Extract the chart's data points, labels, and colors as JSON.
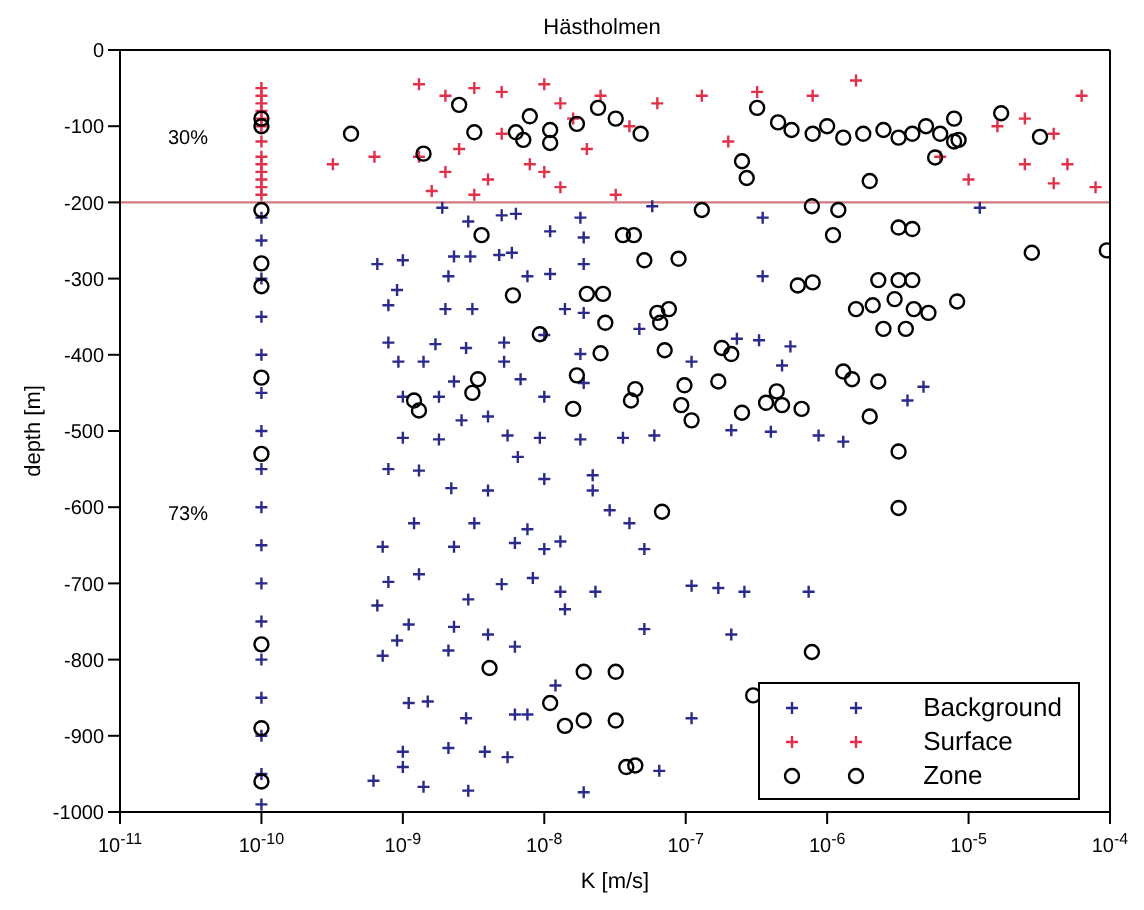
{
  "chart_data": {
    "type": "scatter",
    "title": "Hästholmen",
    "xlabel": "K [m/s]",
    "ylabel": "depth [m]",
    "log": "x",
    "xlim": [
      1e-11,
      0.0001
    ],
    "xticks": [
      {
        "value": 1e-11,
        "label": "10$^{-11}$"
      },
      {
        "value": 1e-10,
        "label": "10$^{-10}$"
      },
      {
        "value": 1e-09,
        "label": "10$^{-9}$"
      },
      {
        "value": 1e-08,
        "label": "10$^{-8}$"
      },
      {
        "value": 1e-07,
        "label": "10$^{-7}$"
      },
      {
        "value": 1e-06,
        "label": "10$^{-6}$"
      },
      {
        "value": 1e-05,
        "label": "10$^{-5}$"
      },
      {
        "value": 0.0001,
        "label": "10$^{-4}$"
      }
    ],
    "ylim": [
      -1000,
      0
    ],
    "yticks": [
      -1000,
      -900,
      -800,
      -700,
      -600,
      -500,
      -400,
      -300,
      -200,
      -100,
      0
    ],
    "legend": "bottom right",
    "ref_lines": [
      {
        "axis": "y",
        "value": -200,
        "color": "#d07a80"
      }
    ],
    "annotations": [
      "30%",
      "73%"
    ],
    "series": [
      {
        "name": "Background",
        "color": "#2a2a8a",
        "marker": "cross",
        "x": [
          1e-10,
          1e-10,
          1e-10,
          1e-10,
          1e-10,
          1e-10,
          1e-10,
          1e-10,
          1e-10,
          1e-10,
          1e-10,
          1e-10,
          1e-10,
          1e-10,
          1e-10,
          1e-10,
          1e-10,
          1.9e-09,
          2.9e-09,
          5e-09,
          6.3e-09,
          1.1e-08,
          1.8e-08,
          1.9e-08,
          5.8e-08,
          3.5e-07,
          1.2e-05,
          6.6e-10,
          1e-09,
          2.3e-09,
          3e-09,
          4.8e-09,
          5.9e-09,
          1.9e-08,
          2.1e-09,
          7.6e-09,
          1.1e-08,
          3.5e-07,
          9.1e-10,
          7.9e-10,
          2e-09,
          3.1e-09,
          1.4e-08,
          1.9e-08,
          4.7e-08,
          7.9e-10,
          1.7e-09,
          2.8e-09,
          5.2e-09,
          1e-08,
          1.8e-08,
          2.3e-07,
          3.3e-07,
          5.5e-07,
          1.1e-07,
          4.8e-07,
          9.3e-10,
          1.4e-09,
          5.2e-09,
          6.8e-09,
          1e-08,
          1e-09,
          1.8e-09,
          2.3e-09,
          1.9e-08,
          4.8e-06,
          3.7e-06,
          1e-09,
          1.8e-09,
          2.6e-09,
          4e-09,
          5.5e-09,
          9.3e-09,
          1.8e-08,
          3.6e-08,
          6e-08,
          2.1e-07,
          4e-07,
          8.7e-07,
          1.3e-06,
          6.5e-09,
          7.9e-10,
          1.3e-09,
          2.2e-09,
          4e-09,
          1e-08,
          2.2e-08,
          2.2e-08,
          1.2e-09,
          3.2e-09,
          7.6e-09,
          2.9e-08,
          4e-08,
          7.2e-10,
          2.3e-09,
          6.2e-09,
          1e-08,
          1.3e-08,
          5.1e-08,
          7.9e-10,
          1.3e-09,
          6.6e-10,
          2.9e-09,
          5e-09,
          8.3e-09,
          1.3e-08,
          2.3e-08,
          1.4e-08,
          1.1e-07,
          1.7e-07,
          2.6e-07,
          7.4e-07,
          1.1e-09,
          2.3e-09,
          4e-09,
          5.1e-08,
          2.1e-07,
          7.2e-10,
          9.1e-10,
          2.1e-09,
          6.2e-09,
          1.1e-09,
          1.5e-09,
          2.8e-09,
          6.2e-09,
          7.6e-09,
          1.2e-08,
          1.1e-07,
          6.2e-10,
          1e-09,
          1e-09,
          2.1e-09,
          3.8e-09,
          5.5e-09,
          1.4e-09,
          2.9e-09,
          6.5e-08,
          1.9e-08
        ],
        "values": [
          -220,
          -250,
          -300,
          -350,
          -400,
          -450,
          -500,
          -550,
          -600,
          -650,
          -700,
          -750,
          -800,
          -850,
          -900,
          -950,
          -990,
          -207,
          -225,
          -217,
          -215,
          -238,
          -220,
          -246,
          -205,
          -220,
          -207,
          -281,
          -276,
          -271,
          -271,
          -269,
          -266,
          -281,
          -297,
          -297,
          -294,
          -297,
          -315,
          -335,
          -340,
          -340,
          -340,
          -345,
          -366,
          -384,
          -386,
          -391,
          -384,
          -374,
          -399,
          -379,
          -381,
          -389,
          -409,
          -414,
          -409,
          -409,
          -409,
          -432,
          -455,
          -455,
          -455,
          -435,
          -437,
          -442,
          -460,
          -509,
          -511,
          -486,
          -481,
          -506,
          -509,
          -511,
          -509,
          -506,
          -499,
          -501,
          -506,
          -514,
          -534,
          -550,
          -552,
          -575,
          -578,
          -563,
          -558,
          -578,
          -621,
          -621,
          -629,
          -604,
          -621,
          -652,
          -652,
          -647,
          -655,
          -645,
          -655,
          -698,
          -688,
          -729,
          -721,
          -701,
          -693,
          -711,
          -711,
          -734,
          -703,
          -706,
          -711,
          -711,
          -754,
          -757,
          -767,
          -760,
          -767,
          -795,
          -775,
          -788,
          -783,
          -857,
          -855,
          -877,
          -872,
          -872,
          -834,
          -877,
          -959,
          -921,
          -941,
          -916,
          -921,
          -928,
          -967,
          -972,
          -946,
          -974
        ]
      },
      {
        "name": "Surface",
        "color": "#e0304a",
        "marker": "cross",
        "x": [
          1e-10,
          1e-10,
          1e-10,
          1e-10,
          1e-10,
          1e-10,
          1e-10,
          1e-10,
          1e-10,
          1e-10,
          1e-10,
          1e-10,
          1e-10,
          1.3e-09,
          2e-09,
          3.2e-09,
          5e-09,
          1e-08,
          1.3e-08,
          1.6e-08,
          2.5e-08,
          4e-08,
          5e-09,
          2.5e-09,
          1.3e-09,
          6.3e-10,
          3.2e-10,
          2e-09,
          4e-09,
          7.9e-09,
          1.3e-08,
          1e-08,
          2e-08,
          3.2e-08,
          3.2e-09,
          1.6e-09,
          6.3e-08,
          1.3e-07,
          3.2e-07,
          7.9e-07,
          1.6e-06,
          2e-07,
          6.3e-06,
          1e-05,
          1.6e-05,
          2.5e-05,
          4e-05,
          6.3e-05,
          7.9e-05,
          5e-05,
          2.5e-05,
          4e-05
        ],
        "values": [
          -50,
          -60,
          -70,
          -80,
          -90,
          -100,
          -120,
          -140,
          -150,
          -160,
          -170,
          -180,
          -190,
          -45,
          -60,
          -50,
          -55,
          -45,
          -70,
          -90,
          -60,
          -100,
          -110,
          -130,
          -140,
          -140,
          -150,
          -160,
          -170,
          -150,
          -180,
          -160,
          -130,
          -190,
          -190,
          -185,
          -70,
          -60,
          -55,
          -60,
          -40,
          -120,
          -140,
          -170,
          -100,
          -150,
          -110,
          -60,
          -180,
          -150,
          -90,
          -175
        ]
      },
      {
        "name": "Zone",
        "color": "#000000",
        "marker": "circle",
        "x": [
          1e-10,
          1e-10,
          1e-10,
          1e-10,
          1e-10,
          1e-10,
          1e-10,
          1e-10,
          1e-10,
          1e-10,
          2.5e-09,
          4.3e-10,
          1.4e-09,
          3.2e-09,
          6.3e-09,
          7.1e-09,
          7.9e-09,
          1.1e-08,
          1.1e-08,
          1.7e-08,
          2.4e-08,
          3.2e-08,
          4.8e-08,
          1.3e-07,
          2.5e-07,
          2.7e-07,
          3.2e-07,
          4.5e-07,
          5.6e-07,
          7.9e-07,
          1e-06,
          1.3e-06,
          1.8e-06,
          2.5e-06,
          3.2e-06,
          4e-06,
          5e-06,
          6.3e-06,
          7.9e-06,
          2e-06,
          5.8e-06,
          7.9e-06,
          8.5e-06,
          1.7e-05,
          3.2e-05,
          7.8e-07,
          1.2e-06,
          1.1e-06,
          3.2e-06,
          4e-06,
          3.6e-09,
          3.6e-08,
          4.3e-08,
          5.1e-08,
          8.9e-08,
          2.8e-05,
          9.5e-05,
          6.2e-07,
          7.9e-07,
          6e-09,
          2e-08,
          2.6e-08,
          2.3e-06,
          3.2e-06,
          4e-06,
          8.3e-06,
          1.6e-06,
          2.1e-06,
          3e-06,
          4.1e-06,
          5.2e-06,
          2.5e-06,
          3.6e-06,
          2.7e-08,
          6.3e-08,
          7.6e-08,
          6.6e-08,
          9.3e-09,
          2.5e-08,
          7.1e-08,
          1.8e-07,
          2.1e-07,
          1.3e-06,
          1.5e-06,
          2.3e-06,
          3.4e-09,
          3.1e-09,
          1.7e-08,
          4.4e-08,
          4.1e-08,
          9.8e-08,
          9.3e-08,
          1.1e-07,
          1.7e-07,
          4.4e-07,
          3.7e-07,
          4.8e-07,
          6.6e-07,
          2.5e-07,
          1.6e-08,
          1.2e-09,
          1.3e-09,
          2e-06,
          3.2e-06,
          6.8e-08,
          3.2e-06,
          7.8e-07,
          4.1e-09,
          1.9e-08,
          3.2e-08,
          1.1e-08,
          3e-07,
          1.4e-08,
          1.9e-08,
          3.2e-08,
          3.8e-08,
          4.4e-08
        ],
        "values": [
          -90,
          -100,
          -210,
          -280,
          -310,
          -430,
          -530,
          -780,
          -890,
          -960,
          -72,
          -110,
          -136,
          -108,
          -108,
          -118,
          -87,
          -105,
          -122,
          -97,
          -76,
          -90,
          -110,
          -210,
          -146,
          -168,
          -76,
          -95,
          -105,
          -110,
          -100,
          -115,
          -110,
          -105,
          -115,
          -110,
          -100,
          -110,
          -120,
          -172,
          -141,
          -90,
          -118,
          -83,
          -114,
          -205,
          -210,
          -243,
          -233,
          -235,
          -243,
          -243,
          -243,
          -276,
          -274,
          -266,
          -263,
          -309,
          -305,
          -322,
          -320,
          -320,
          -302,
          -302,
          -302,
          -330,
          -340,
          -335,
          -327,
          -340,
          -345,
          -366,
          -366,
          -358,
          -345,
          -340,
          -358,
          -373,
          -398,
          -394,
          -391,
          -399,
          -422,
          -432,
          -435,
          -432,
          -450,
          -427,
          -445,
          -460,
          -440,
          -466,
          -486,
          -435,
          -448,
          -463,
          -466,
          -471,
          -476,
          -471,
          -460,
          -473,
          -481,
          -527,
          -606,
          -601,
          -790,
          -811,
          -816,
          -816,
          -857,
          -847,
          -887,
          -880,
          -880,
          -941,
          -939
        ]
      }
    ]
  }
}
